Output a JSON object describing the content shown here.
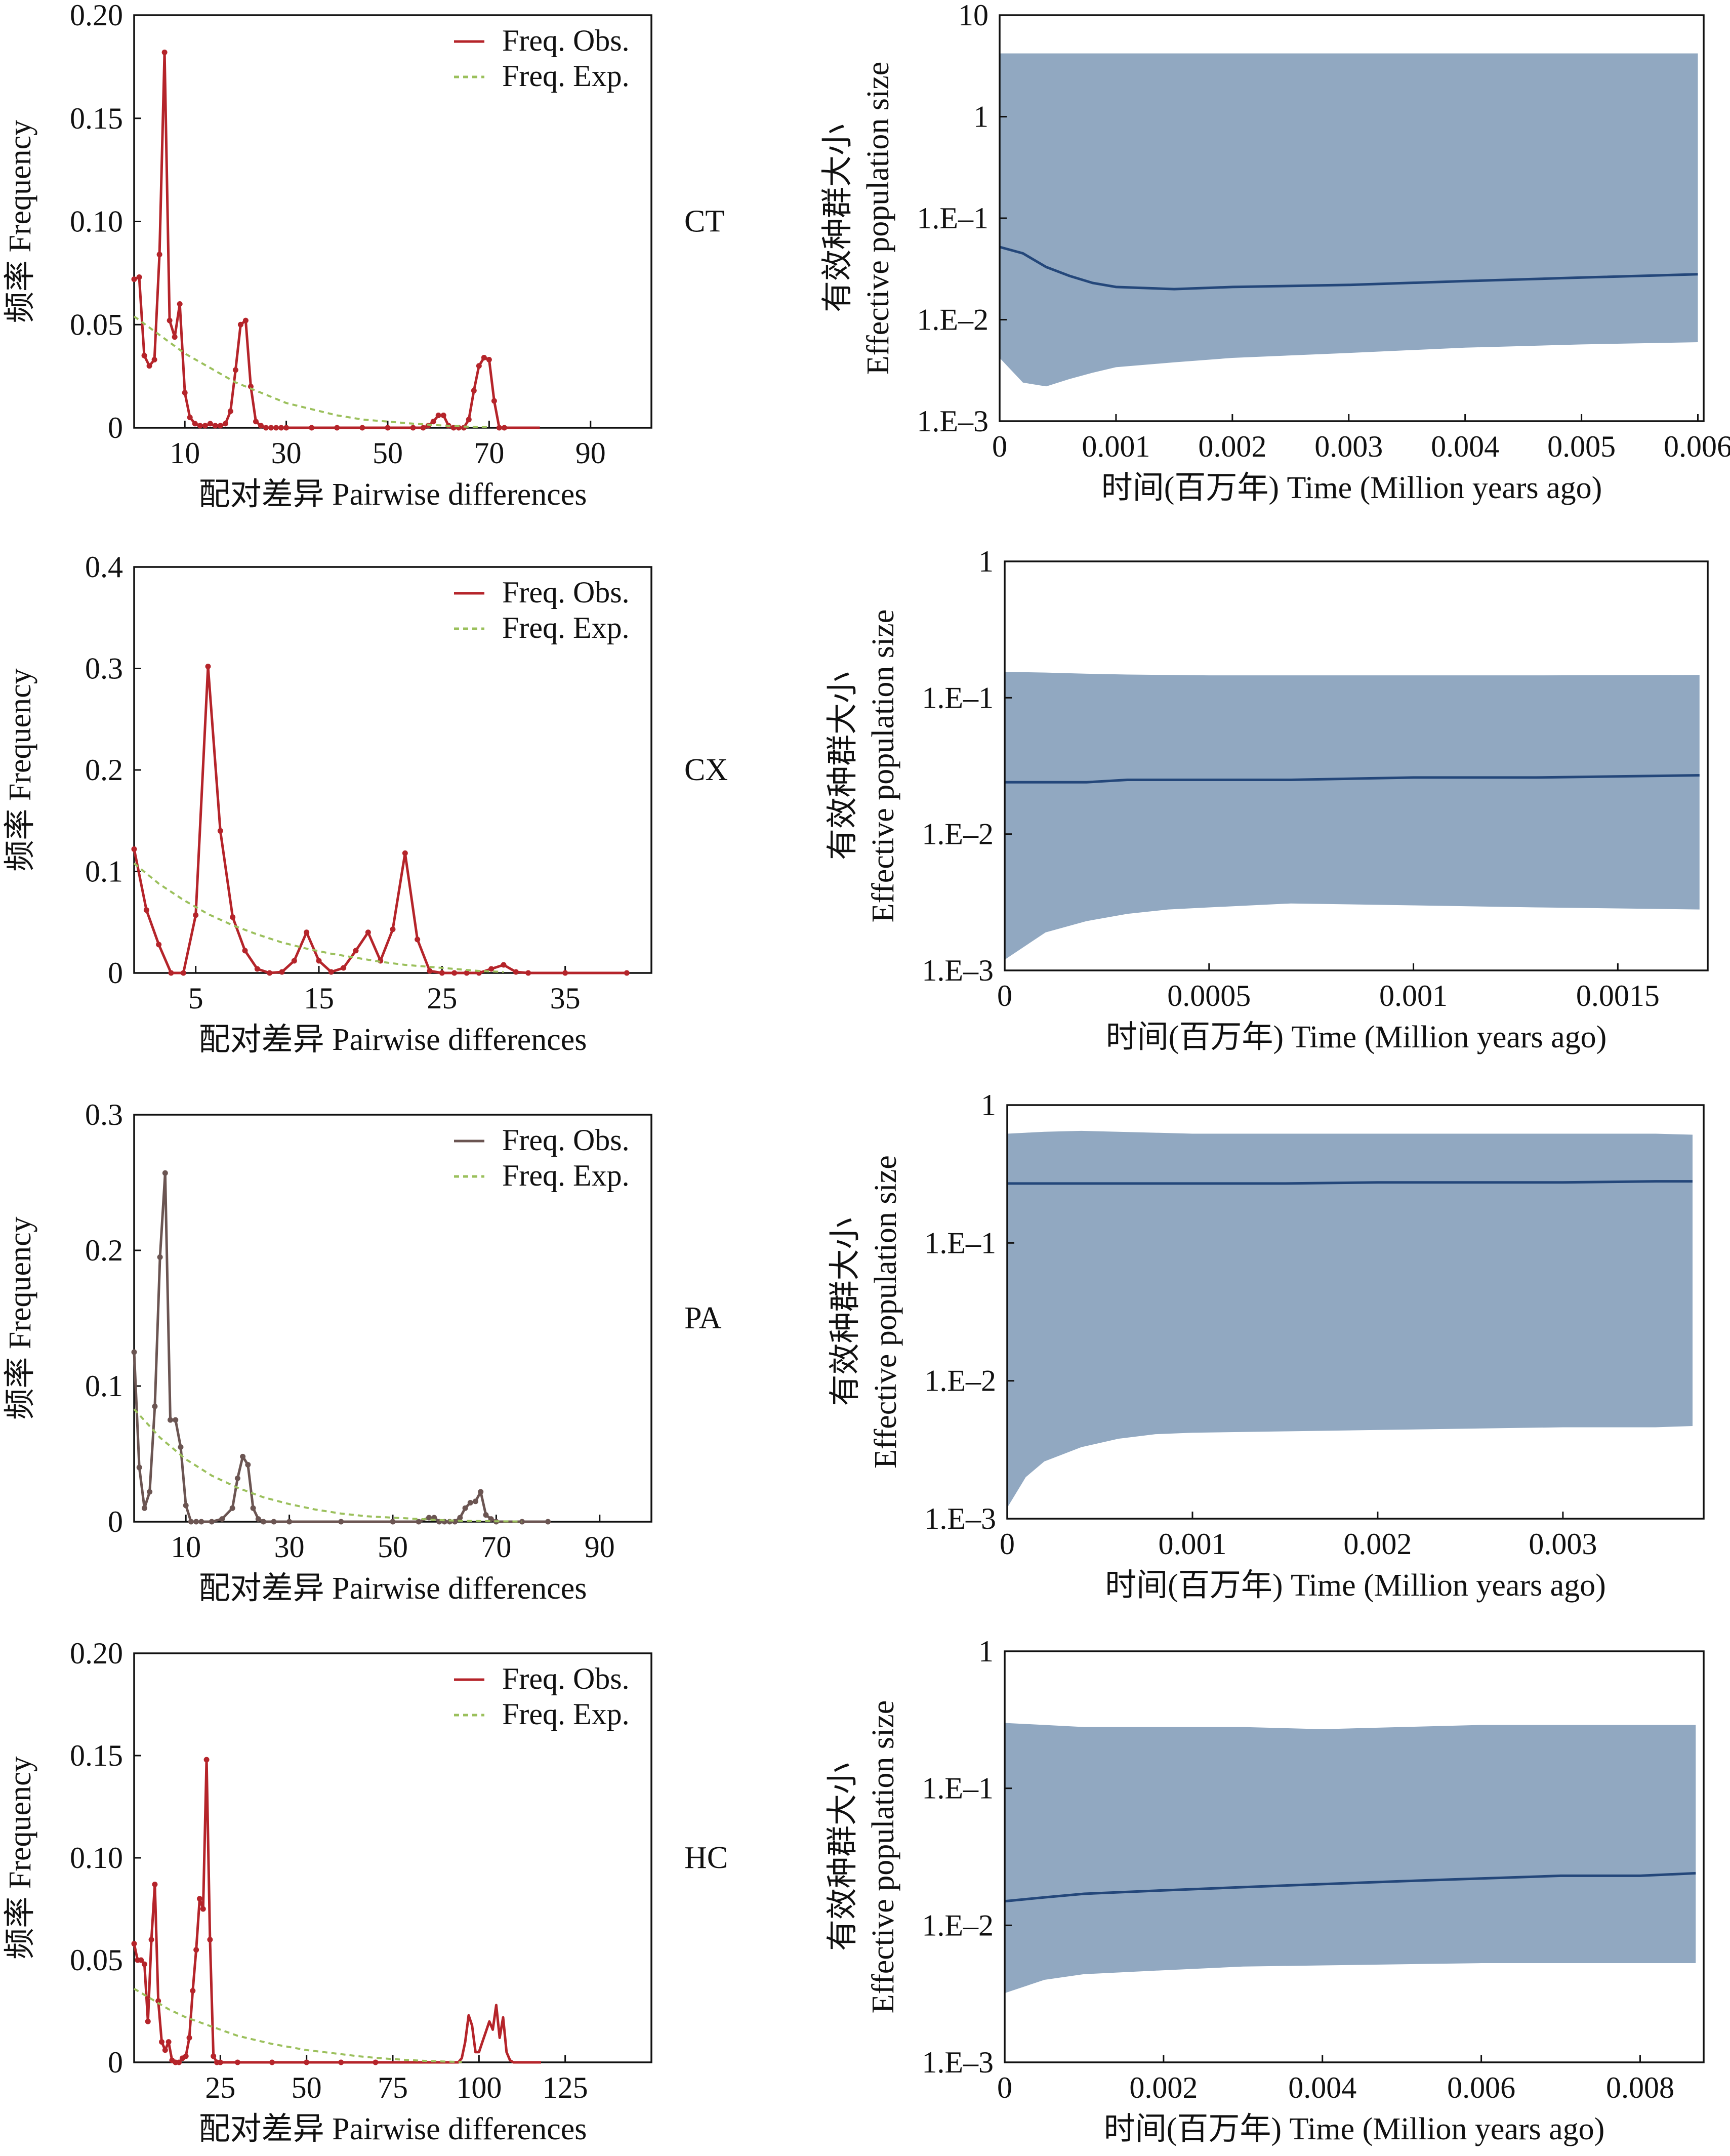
{
  "colors": {
    "observed": "#b5242a",
    "observed_pa": "#6b5552",
    "expected": "#9bc05c",
    "band": "#91a8c1",
    "median": "#24477a"
  },
  "chart_data": [
    {
      "type": "line",
      "panel": "CT-mismatch",
      "panel_label": "CT",
      "xlabel": "配对差异  Pairwise differences",
      "ylabel": "频率  Frequency",
      "xlim": [
        0,
        102
      ],
      "ylim": [
        0,
        0.2
      ],
      "xticks": [
        10,
        30,
        50,
        70,
        90
      ],
      "yticks": [
        0,
        0.05,
        0.1,
        0.15,
        0.2
      ],
      "ytick_labels": [
        "0",
        "0.05",
        "0.10",
        "0.15",
        "0.20"
      ],
      "series": [
        {
          "name": "Freq. Obs.",
          "style": "obs",
          "x": [
            0,
            1,
            2,
            3,
            4,
            5,
            6,
            7,
            8,
            9,
            10,
            11,
            12,
            13,
            14,
            15,
            16,
            17,
            18,
            19,
            20,
            21,
            22,
            23,
            24,
            25,
            26,
            27,
            28,
            29,
            30,
            35,
            40,
            45,
            50,
            55,
            57,
            58,
            59,
            60,
            61,
            62,
            63,
            64,
            65,
            66,
            67,
            68,
            69,
            70,
            71,
            72,
            73,
            80
          ],
          "y": [
            0.072,
            0.073,
            0.035,
            0.03,
            0.033,
            0.084,
            0.182,
            0.052,
            0.044,
            0.06,
            0.017,
            0.005,
            0.002,
            0.001,
            0.001,
            0.002,
            0.001,
            0.001,
            0.002,
            0.008,
            0.028,
            0.05,
            0.052,
            0.02,
            0.003,
            0.001,
            0,
            0,
            0,
            0,
            0,
            0,
            0,
            0,
            0,
            0,
            0,
            0.001,
            0.003,
            0.006,
            0.006,
            0.001,
            0,
            0,
            0,
            0.004,
            0.018,
            0.03,
            0.034,
            0.033,
            0.013,
            0,
            0,
            0
          ]
        },
        {
          "name": "Freq. Exp.",
          "style": "exp",
          "x": [
            0,
            5,
            10,
            15,
            20,
            25,
            30,
            35,
            40,
            45,
            50,
            55,
            60,
            65,
            70
          ],
          "y": [
            0.054,
            0.045,
            0.036,
            0.029,
            0.022,
            0.017,
            0.012,
            0.009,
            0.006,
            0.004,
            0.003,
            0.002,
            0.0012,
            0.0006,
            0.0002
          ]
        }
      ]
    },
    {
      "type": "area",
      "panel": "CT-skyline",
      "xlabel": "时间(百万年) Time (Million years ago)",
      "ylabel": "有效种群大小\nEffective population size",
      "xlim": [
        0,
        0.00605
      ],
      "ylim": [
        0.001,
        10
      ],
      "yscale": "log",
      "xticks": [
        0,
        0.001,
        0.002,
        0.003,
        0.004,
        0.005,
        0.006
      ],
      "xtick_labels": [
        "0",
        "0.001",
        "0.002",
        "0.003",
        "0.004",
        "0.005",
        "0.006"
      ],
      "yticks": [
        0.001,
        0.01,
        0.1,
        1,
        10
      ],
      "ytick_labels": [
        "1.E–3",
        "1.E–2",
        "1.E–1",
        "1",
        "10"
      ],
      "x": [
        0,
        0.0002,
        0.0004,
        0.0006,
        0.0008,
        0.001,
        0.0015,
        0.002,
        0.003,
        0.004,
        0.005,
        0.006
      ],
      "median": [
        0.052,
        0.045,
        0.033,
        0.027,
        0.023,
        0.021,
        0.02,
        0.021,
        0.022,
        0.024,
        0.026,
        0.028
      ],
      "upper": [
        4.2,
        4.2,
        4.2,
        4.2,
        4.2,
        4.2,
        4.2,
        4.2,
        4.2,
        4.2,
        4.2,
        4.2
      ],
      "lower": [
        0.0042,
        0.0024,
        0.0022,
        0.0026,
        0.003,
        0.0034,
        0.0038,
        0.0042,
        0.0047,
        0.0053,
        0.0057,
        0.006
      ]
    },
    {
      "type": "line",
      "panel": "CX-mismatch",
      "panel_label": "CX",
      "xlabel": "配对差异  Pairwise differences",
      "ylabel": "频率  Frequency",
      "xlim": [
        0,
        42
      ],
      "ylim": [
        0,
        0.4
      ],
      "xticks": [
        5,
        15,
        25,
        35
      ],
      "yticks": [
        0,
        0.1,
        0.2,
        0.3,
        0.4
      ],
      "ytick_labels": [
        "0",
        "0.1",
        "0.2",
        "0.3",
        "0.4"
      ],
      "series": [
        {
          "name": "Freq. Obs.",
          "style": "obs",
          "x": [
            0,
            1,
            2,
            3,
            4,
            5,
            6,
            7,
            8,
            9,
            10,
            11,
            12,
            13,
            14,
            15,
            16,
            17,
            18,
            19,
            20,
            21,
            22,
            23,
            24,
            25,
            26,
            27,
            28,
            29,
            30,
            31,
            32,
            35,
            40
          ],
          "y": [
            0.122,
            0.062,
            0.028,
            0,
            0,
            0.057,
            0.302,
            0.14,
            0.055,
            0.022,
            0.004,
            0,
            0.001,
            0.012,
            0.04,
            0.012,
            0.001,
            0.005,
            0.022,
            0.04,
            0.012,
            0.043,
            0.118,
            0.033,
            0.002,
            0,
            0,
            0,
            0,
            0.004,
            0.008,
            0.001,
            0,
            0,
            0
          ]
        },
        {
          "name": "Freq. Exp.",
          "style": "exp",
          "x": [
            0,
            2,
            4,
            6,
            8,
            10,
            12,
            14,
            16,
            18,
            20,
            22,
            24,
            26,
            28,
            30
          ],
          "y": [
            0.108,
            0.088,
            0.072,
            0.058,
            0.047,
            0.038,
            0.03,
            0.024,
            0.019,
            0.015,
            0.011,
            0.008,
            0.006,
            0.004,
            0.002,
            0.001
          ]
        }
      ]
    },
    {
      "type": "area",
      "panel": "CX-skyline",
      "xlabel": "时间(百万年) Time (Million years ago)",
      "ylabel": "有效种群大小\nEffective population size",
      "xlim": [
        0,
        0.00172
      ],
      "ylim": [
        0.001,
        1
      ],
      "yscale": "log",
      "xticks": [
        0,
        0.0005,
        0.001,
        0.0015
      ],
      "xtick_labels": [
        "0",
        "0.0005",
        "0.001",
        "0.0015"
      ],
      "yticks": [
        0.001,
        0.01,
        0.1,
        1
      ],
      "ytick_labels": [
        "1.E–3",
        "1.E–2",
        "1.E–1",
        "1"
      ],
      "x": [
        0,
        0.0001,
        0.0002,
        0.0003,
        0.0004,
        0.0005,
        0.0007,
        0.001,
        0.0013,
        0.0017
      ],
      "median": [
        0.024,
        0.024,
        0.024,
        0.025,
        0.025,
        0.025,
        0.025,
        0.026,
        0.026,
        0.027
      ],
      "upper": [
        0.155,
        0.153,
        0.15,
        0.148,
        0.147,
        0.146,
        0.146,
        0.146,
        0.146,
        0.147
      ],
      "lower": [
        0.0012,
        0.0019,
        0.0023,
        0.0026,
        0.0028,
        0.0029,
        0.0031,
        0.003,
        0.0029,
        0.0028
      ]
    },
    {
      "type": "line",
      "panel": "PA-mismatch",
      "panel_label": "PA",
      "xlabel": "配对差异  Pairwise differences",
      "ylabel": "频率  Frequency",
      "xlim": [
        0,
        100
      ],
      "ylim": [
        0,
        0.3
      ],
      "xticks": [
        10,
        30,
        50,
        70,
        90
      ],
      "yticks": [
        0,
        0.1,
        0.2,
        0.3
      ],
      "ytick_labels": [
        "0",
        "0.1",
        "0.2",
        "0.3"
      ],
      "series": [
        {
          "name": "Freq. Obs.",
          "style": "obs_pa",
          "x": [
            0,
            1,
            2,
            3,
            4,
            5,
            6,
            7,
            8,
            9,
            10,
            11,
            12,
            13,
            15,
            17,
            19,
            20,
            21,
            22,
            23,
            24,
            25,
            27,
            30,
            40,
            50,
            55,
            57,
            58,
            59,
            60,
            61,
            62,
            63,
            64,
            65,
            66,
            67,
            68,
            69,
            70,
            75,
            80
          ],
          "y": [
            0.125,
            0.04,
            0.01,
            0.022,
            0.085,
            0.195,
            0.257,
            0.075,
            0.075,
            0.055,
            0.012,
            0,
            0,
            0,
            0,
            0.002,
            0.01,
            0.032,
            0.048,
            0.042,
            0.01,
            0.002,
            0,
            0,
            0,
            0,
            0,
            0,
            0.003,
            0.003,
            0,
            0,
            0,
            0,
            0.003,
            0.01,
            0.014,
            0.015,
            0.022,
            0.005,
            0.002,
            0,
            0,
            0
          ]
        },
        {
          "name": "Freq. Exp.",
          "style": "exp",
          "x": [
            0,
            5,
            10,
            15,
            20,
            25,
            30,
            35,
            40,
            45,
            50,
            55,
            60,
            65,
            70,
            75
          ],
          "y": [
            0.083,
            0.062,
            0.046,
            0.034,
            0.025,
            0.018,
            0.013,
            0.009,
            0.006,
            0.004,
            0.003,
            0.002,
            0.001,
            0.0006,
            0.0003,
            0.0001
          ]
        }
      ]
    },
    {
      "type": "area",
      "panel": "PA-skyline",
      "xlabel": "时间(百万年) Time (Million years ago)",
      "ylabel": "有效种群大小\nEffective population size",
      "xlim": [
        0,
        0.00376
      ],
      "ylim": [
        0.001,
        1
      ],
      "yscale": "log",
      "xticks": [
        0,
        0.001,
        0.002,
        0.003
      ],
      "xtick_labels": [
        "0",
        "0.001",
        "0.002",
        "0.003"
      ],
      "yticks": [
        0.001,
        0.01,
        0.1,
        1
      ],
      "ytick_labels": [
        "1.E–3",
        "1.E–2",
        "1.E–1",
        "1"
      ],
      "x": [
        0,
        0.0001,
        0.0002,
        0.0004,
        0.0006,
        0.0008,
        0.001,
        0.0015,
        0.002,
        0.0025,
        0.003,
        0.0035,
        0.0037
      ],
      "median": [
        0.27,
        0.27,
        0.27,
        0.27,
        0.27,
        0.27,
        0.27,
        0.27,
        0.275,
        0.275,
        0.275,
        0.28,
        0.28
      ],
      "upper": [
        0.62,
        0.63,
        0.64,
        0.65,
        0.64,
        0.63,
        0.62,
        0.62,
        0.62,
        0.62,
        0.62,
        0.62,
        0.61
      ],
      "lower": [
        0.0012,
        0.002,
        0.0026,
        0.0033,
        0.0038,
        0.0041,
        0.0042,
        0.0043,
        0.0044,
        0.0045,
        0.0046,
        0.0046,
        0.0047
      ]
    },
    {
      "type": "line",
      "panel": "HC-mismatch",
      "panel_label": "HC",
      "xlabel": "配对差异  Pairwise differences",
      "ylabel": "频率  Frequency",
      "xlim": [
        0,
        150
      ],
      "ylim": [
        0,
        0.2
      ],
      "xticks": [
        25,
        50,
        75,
        100,
        125
      ],
      "yticks": [
        0,
        0.05,
        0.1,
        0.15,
        0.2
      ],
      "ytick_labels": [
        "0",
        "0.05",
        "0.10",
        "0.15",
        "0.20"
      ],
      "series": [
        {
          "name": "Freq. Obs.",
          "style": "obs",
          "x": [
            0,
            1,
            2,
            3,
            4,
            5,
            6,
            7,
            8,
            9,
            10,
            11,
            12,
            13,
            14,
            15,
            16,
            17,
            18,
            19,
            20,
            21,
            22,
            23,
            24,
            25,
            30,
            40,
            50,
            60,
            70,
            80,
            90,
            94,
            95,
            96,
            97,
            98,
            99,
            100,
            101,
            102,
            103,
            104,
            105,
            106,
            107,
            108,
            109,
            110,
            115,
            118
          ],
          "y": [
            0.058,
            0.05,
            0.05,
            0.048,
            0.02,
            0.06,
            0.087,
            0.03,
            0.01,
            0.006,
            0.01,
            0.001,
            0,
            0,
            0.002,
            0.003,
            0.012,
            0.035,
            0.055,
            0.08,
            0.075,
            0.148,
            0.06,
            0.003,
            0,
            0,
            0,
            0,
            0,
            0,
            0,
            0,
            0,
            0,
            0.002,
            0.01,
            0.023,
            0.018,
            0.005,
            0.005,
            0.01,
            0.015,
            0.02,
            0.016,
            0.028,
            0.012,
            0.022,
            0.005,
            0.001,
            0,
            0,
            0
          ]
        },
        {
          "name": "Freq. Exp.",
          "style": "exp",
          "x": [
            0,
            5,
            10,
            15,
            20,
            25,
            30,
            35,
            40,
            45,
            50,
            55,
            60,
            65,
            70,
            75,
            80,
            85,
            90,
            95
          ],
          "y": [
            0.036,
            0.031,
            0.026,
            0.022,
            0.019,
            0.016,
            0.013,
            0.011,
            0.009,
            0.0075,
            0.006,
            0.005,
            0.004,
            0.003,
            0.0022,
            0.0016,
            0.0011,
            0.0007,
            0.0004,
            0.0002
          ]
        }
      ]
    },
    {
      "type": "area",
      "panel": "HC-skyline",
      "xlabel": "时间(百万年) Time (Million years ago)",
      "ylabel": "有效种群大小\nEffective population size",
      "xlim": [
        0,
        0.0088
      ],
      "ylim": [
        0.001,
        1
      ],
      "yscale": "log",
      "xticks": [
        0,
        0.002,
        0.004,
        0.006,
        0.008
      ],
      "xtick_labels": [
        "0",
        "0.002",
        "0.004",
        "0.006",
        "0.008"
      ],
      "yticks": [
        0.001,
        0.01,
        0.1,
        1
      ],
      "ytick_labels": [
        "1.E–3",
        "1.E–2",
        "1.E–1",
        "1"
      ],
      "x": [
        0,
        0.0005,
        0.001,
        0.002,
        0.003,
        0.004,
        0.005,
        0.006,
        0.007,
        0.008,
        0.0087
      ],
      "median": [
        0.015,
        0.016,
        0.017,
        0.018,
        0.019,
        0.02,
        0.021,
        0.022,
        0.023,
        0.023,
        0.024
      ],
      "upper": [
        0.3,
        0.29,
        0.28,
        0.28,
        0.28,
        0.27,
        0.28,
        0.29,
        0.29,
        0.29,
        0.29
      ],
      "lower": [
        0.0032,
        0.004,
        0.0044,
        0.0047,
        0.005,
        0.0051,
        0.0052,
        0.0053,
        0.0053,
        0.0053,
        0.0053
      ]
    }
  ]
}
